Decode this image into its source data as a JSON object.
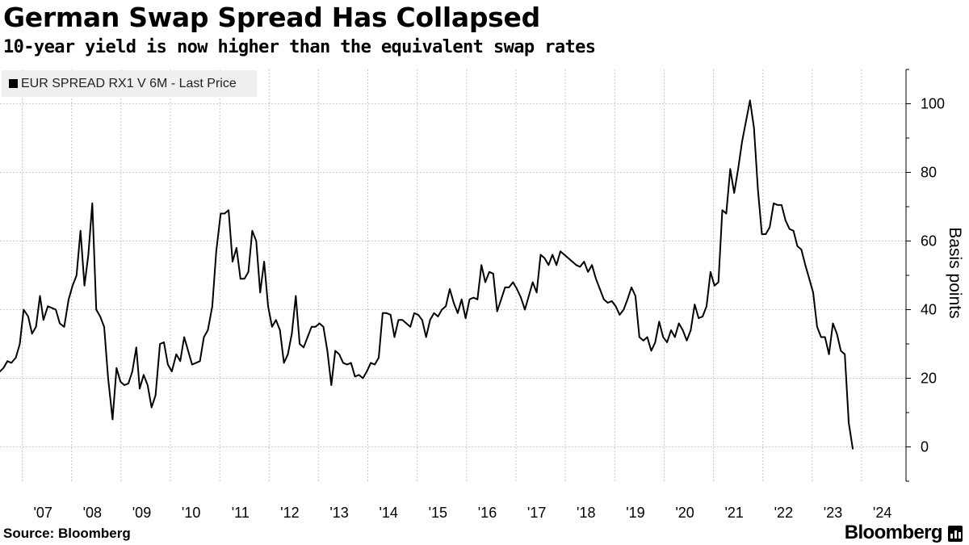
{
  "title": "German Swap Spread Has Collapsed",
  "subtitle": "10-year yield is now higher than the equivalent swap rates",
  "source": "Source: Bloomberg",
  "brand": "Bloomberg",
  "chart_data": {
    "type": "line",
    "title": "German Swap Spread Has Collapsed",
    "subtitle": "10-year yield is now higher than the equivalent swap rates",
    "xlabel": "",
    "ylabel": "Basis points",
    "ylim": [
      -10,
      110
    ],
    "xlim": [
      2006.55,
      2024.9
    ],
    "yticks": [
      0,
      20,
      40,
      60,
      80,
      100
    ],
    "ytick_labels": [
      "0",
      "20",
      "40",
      "60",
      "80",
      "100"
    ],
    "xticks": [
      2007,
      2008,
      2009,
      2010,
      2011,
      2012,
      2013,
      2014,
      2015,
      2016,
      2017,
      2018,
      2019,
      2020,
      2021,
      2022,
      2023,
      2024
    ],
    "xtick_labels": [
      "'07",
      "'08",
      "'09",
      "'10",
      "'11",
      "'12",
      "'13",
      "'14",
      "'15",
      "'16",
      "'17",
      "'18",
      "'19",
      "'20",
      "'21",
      "'22",
      "'23",
      "'24"
    ],
    "grid": true,
    "legend": {
      "position": "top-left",
      "entries": [
        "EUR SPREAD RX1 V 6M - Last Price"
      ]
    },
    "line_color": "#000000",
    "series": [
      {
        "name": "EUR SPREAD RX1 V 6M - Last Price",
        "points": [
          [
            2006.55,
            22
          ],
          [
            2006.62,
            23
          ],
          [
            2006.7,
            25
          ],
          [
            2006.78,
            24.5
          ],
          [
            2006.87,
            26
          ],
          [
            2006.95,
            30
          ],
          [
            2007.03,
            40
          ],
          [
            2007.12,
            38
          ],
          [
            2007.2,
            33
          ],
          [
            2007.28,
            35
          ],
          [
            2007.36,
            44
          ],
          [
            2007.43,
            37
          ],
          [
            2007.52,
            41
          ],
          [
            2007.6,
            40.5
          ],
          [
            2007.68,
            40
          ],
          [
            2007.76,
            36
          ],
          [
            2007.85,
            35
          ],
          [
            2007.94,
            43
          ],
          [
            2008.02,
            47
          ],
          [
            2008.1,
            50
          ],
          [
            2008.18,
            63
          ],
          [
            2008.26,
            47
          ],
          [
            2008.34,
            56
          ],
          [
            2008.42,
            71
          ],
          [
            2008.5,
            40
          ],
          [
            2008.58,
            38
          ],
          [
            2008.66,
            35
          ],
          [
            2008.74,
            20
          ],
          [
            2008.83,
            8
          ],
          [
            2008.91,
            23
          ],
          [
            2008.99,
            19
          ],
          [
            2009.07,
            18
          ],
          [
            2009.15,
            18.5
          ],
          [
            2009.23,
            22
          ],
          [
            2009.31,
            29
          ],
          [
            2009.38,
            17
          ],
          [
            2009.46,
            21
          ],
          [
            2009.54,
            18
          ],
          [
            2009.62,
            11.5
          ],
          [
            2009.7,
            15
          ],
          [
            2009.79,
            30
          ],
          [
            2009.87,
            30.5
          ],
          [
            2009.95,
            24
          ],
          [
            2010.03,
            22
          ],
          [
            2010.12,
            27
          ],
          [
            2010.2,
            25
          ],
          [
            2010.28,
            32
          ],
          [
            2010.36,
            28
          ],
          [
            2010.44,
            24
          ],
          [
            2010.52,
            24.5
          ],
          [
            2010.6,
            25
          ],
          [
            2010.68,
            32
          ],
          [
            2010.76,
            34
          ],
          [
            2010.85,
            41
          ],
          [
            2010.93,
            57
          ],
          [
            2011.02,
            68
          ],
          [
            2011.1,
            68
          ],
          [
            2011.18,
            69
          ],
          [
            2011.26,
            54
          ],
          [
            2011.34,
            58
          ],
          [
            2011.42,
            49
          ],
          [
            2011.5,
            49
          ],
          [
            2011.58,
            51
          ],
          [
            2011.66,
            63
          ],
          [
            2011.74,
            60
          ],
          [
            2011.82,
            45
          ],
          [
            2011.9,
            54
          ],
          [
            2011.98,
            41
          ],
          [
            2012.06,
            35
          ],
          [
            2012.14,
            37
          ],
          [
            2012.22,
            34
          ],
          [
            2012.3,
            24.5
          ],
          [
            2012.38,
            27
          ],
          [
            2012.46,
            33
          ],
          [
            2012.54,
            44
          ],
          [
            2012.62,
            30
          ],
          [
            2012.7,
            29
          ],
          [
            2012.78,
            32
          ],
          [
            2012.86,
            35
          ],
          [
            2012.94,
            35
          ],
          [
            2013.02,
            36
          ],
          [
            2013.1,
            35
          ],
          [
            2013.18,
            28
          ],
          [
            2013.26,
            18
          ],
          [
            2013.34,
            28
          ],
          [
            2013.42,
            27
          ],
          [
            2013.5,
            24.5
          ],
          [
            2013.58,
            24
          ],
          [
            2013.66,
            24.5
          ],
          [
            2013.74,
            20.5
          ],
          [
            2013.82,
            21
          ],
          [
            2013.9,
            20
          ],
          [
            2013.98,
            22
          ],
          [
            2014.06,
            24.5
          ],
          [
            2014.14,
            24
          ],
          [
            2014.22,
            26
          ],
          [
            2014.3,
            39
          ],
          [
            2014.38,
            39
          ],
          [
            2014.46,
            38.5
          ],
          [
            2014.54,
            32
          ],
          [
            2014.62,
            37
          ],
          [
            2014.7,
            37
          ],
          [
            2014.78,
            36
          ],
          [
            2014.86,
            35
          ],
          [
            2014.94,
            39
          ],
          [
            2015.02,
            38.5
          ],
          [
            2015.1,
            37
          ],
          [
            2015.18,
            32
          ],
          [
            2015.26,
            37
          ],
          [
            2015.34,
            39
          ],
          [
            2015.42,
            38
          ],
          [
            2015.5,
            40
          ],
          [
            2015.58,
            41
          ],
          [
            2015.66,
            46
          ],
          [
            2015.74,
            42
          ],
          [
            2015.82,
            39
          ],
          [
            2015.9,
            43
          ],
          [
            2015.98,
            37.5
          ],
          [
            2016.06,
            43
          ],
          [
            2016.14,
            43.5
          ],
          [
            2016.22,
            43
          ],
          [
            2016.3,
            53
          ],
          [
            2016.38,
            48
          ],
          [
            2016.46,
            51
          ],
          [
            2016.54,
            50.5
          ],
          [
            2016.62,
            39.5
          ],
          [
            2016.7,
            43
          ],
          [
            2016.78,
            46.5
          ],
          [
            2016.86,
            46.5
          ],
          [
            2016.94,
            48
          ],
          [
            2017.02,
            46
          ],
          [
            2017.1,
            43.5
          ],
          [
            2017.18,
            40
          ],
          [
            2017.26,
            44
          ],
          [
            2017.34,
            48
          ],
          [
            2017.42,
            45
          ],
          [
            2017.5,
            56
          ],
          [
            2017.58,
            55
          ],
          [
            2017.66,
            53
          ],
          [
            2017.74,
            56
          ],
          [
            2017.82,
            53
          ],
          [
            2017.9,
            57
          ],
          [
            2017.98,
            56
          ],
          [
            2018.06,
            55
          ],
          [
            2018.14,
            54
          ],
          [
            2018.22,
            53
          ],
          [
            2018.3,
            52.5
          ],
          [
            2018.38,
            54
          ],
          [
            2018.46,
            51
          ],
          [
            2018.54,
            53
          ],
          [
            2018.62,
            49
          ],
          [
            2018.7,
            46
          ],
          [
            2018.78,
            43
          ],
          [
            2018.86,
            42
          ],
          [
            2018.94,
            42.5
          ],
          [
            2019.02,
            41
          ],
          [
            2019.1,
            38.5
          ],
          [
            2019.18,
            40
          ],
          [
            2019.26,
            43
          ],
          [
            2019.34,
            46.5
          ],
          [
            2019.42,
            44
          ],
          [
            2019.5,
            32
          ],
          [
            2019.58,
            31
          ],
          [
            2019.66,
            32
          ],
          [
            2019.74,
            28
          ],
          [
            2019.82,
            30.5
          ],
          [
            2019.9,
            36.5
          ],
          [
            2019.98,
            32
          ],
          [
            2020.06,
            30.5
          ],
          [
            2020.14,
            34
          ],
          [
            2020.22,
            32
          ],
          [
            2020.3,
            36
          ],
          [
            2020.38,
            34
          ],
          [
            2020.46,
            31
          ],
          [
            2020.54,
            34
          ],
          [
            2020.62,
            41.5
          ],
          [
            2020.7,
            37.5
          ],
          [
            2020.78,
            38
          ],
          [
            2020.86,
            41
          ],
          [
            2020.94,
            51
          ],
          [
            2021.02,
            47
          ],
          [
            2021.1,
            48
          ],
          [
            2021.18,
            69
          ],
          [
            2021.26,
            68
          ],
          [
            2021.34,
            81
          ],
          [
            2021.42,
            74
          ],
          [
            2021.5,
            81
          ],
          [
            2021.58,
            89
          ],
          [
            2021.66,
            95
          ],
          [
            2021.74,
            101
          ],
          [
            2021.82,
            93
          ],
          [
            2021.9,
            75
          ],
          [
            2021.98,
            62
          ],
          [
            2022.06,
            62
          ],
          [
            2022.14,
            64
          ],
          [
            2022.22,
            71
          ],
          [
            2022.3,
            70.5
          ],
          [
            2022.38,
            70.5
          ],
          [
            2022.46,
            66
          ],
          [
            2022.54,
            63.5
          ],
          [
            2022.62,
            63
          ],
          [
            2022.7,
            58.5
          ],
          [
            2022.78,
            57.5
          ],
          [
            2022.86,
            53
          ],
          [
            2022.94,
            49
          ],
          [
            2023.02,
            45
          ],
          [
            2023.1,
            35
          ],
          [
            2023.18,
            32
          ],
          [
            2023.26,
            32
          ],
          [
            2023.34,
            27
          ],
          [
            2023.42,
            36
          ],
          [
            2023.5,
            33
          ],
          [
            2023.58,
            28
          ],
          [
            2023.66,
            27
          ],
          [
            2023.74,
            7
          ],
          [
            2023.82,
            -0.5
          ]
        ]
      }
    ]
  }
}
